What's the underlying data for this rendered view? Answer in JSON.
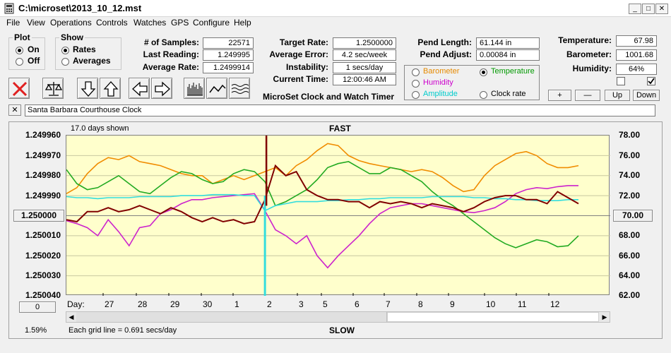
{
  "window": {
    "title": "C:\\microset\\2013_10_12.mst",
    "minimize_glyph": "_",
    "maximize_glyph": "□",
    "close_glyph": "✕"
  },
  "menu": [
    "File",
    "View",
    "Operations",
    "Controls",
    "Watches",
    "GPS",
    "Configure",
    "Help"
  ],
  "plot_group": {
    "title": "Plot",
    "options": [
      "On",
      "Off"
    ],
    "selected": "On"
  },
  "show_group": {
    "title": "Show",
    "options": [
      "Rates",
      "Averages"
    ],
    "selected": "Rates"
  },
  "stats": {
    "samples_label": "# of Samples:",
    "samples_value": "22571",
    "last_reading_label": "Last Reading:",
    "last_reading_value": "1.249995",
    "average_rate_label": "Average Rate:",
    "average_rate_value": "1.2499914",
    "target_rate_label": "Target Rate:",
    "target_rate_value": "1.2500000",
    "average_error_label": "Average Error:",
    "average_error_value": "4.2 sec/week",
    "instability_label": "Instability:",
    "instability_value": "1 secs/day",
    "current_time_label": "Current Time:",
    "current_time_value": "12:00:46 AM",
    "pend_length_label": "Pend Length:",
    "pend_length_value": "61.144 in",
    "pend_adjust_label": "Pend Adjust:",
    "pend_adjust_value": "0.00084 in",
    "temperature_label": "Temperature:",
    "temperature_value": "67.98",
    "barometer_label": "Barometer:",
    "barometer_value": "1001.68",
    "humidity_label": "Humidity:",
    "humidity_value": "64%"
  },
  "app_caption": "MicroSet Clock and Watch Timer",
  "sensor_select": {
    "options": [
      {
        "label": "Barometer",
        "color": "#e68a00"
      },
      {
        "label": "Temperature",
        "color": "#009900"
      },
      {
        "label": "Humidity",
        "color": "#cc00cc"
      },
      {
        "label": "Clock rate",
        "color": "#000000"
      },
      {
        "label": "Amplitude",
        "color": "#00cccc"
      }
    ],
    "selected": "Temperature"
  },
  "scale_buttons": {
    "plus": "+",
    "minus": "—",
    "up": "Up",
    "down": "Down"
  },
  "toolbar_icons": [
    "clear-x-icon",
    "balance-scale-icon",
    "arrow-down-icon",
    "arrow-up-icon",
    "arrow-left-icon",
    "arrow-right-icon",
    "bar-graph-icon",
    "line-wave-icon",
    "multi-wave-icon"
  ],
  "clock_name": {
    "clear_glyph": "✕",
    "value": "Santa Barbara Courthouse Clock"
  },
  "chart": {
    "days_shown": "17.0 days shown",
    "top_label": "FAST",
    "bottom_label": "SLOW",
    "grid_note": "Each grid line = 0.691 secs/day",
    "zoom_percent": "1.59%",
    "center_button": "1.250000",
    "right_button": "70.00",
    "zero_button": "0",
    "day_label": "Day:",
    "scroll_left": "◀",
    "scroll_right": "▶"
  },
  "chart_data": {
    "type": "line",
    "y_left_ticks": [
      "1.249960",
      "1.249970",
      "1.249980",
      "1.249990",
      "1.250000",
      "1.250010",
      "1.250020",
      "1.250030",
      "1.250040"
    ],
    "y_right_ticks": [
      "78.00",
      "76.00",
      "74.00",
      "72.00",
      "70.00",
      "68.00",
      "66.00",
      "64.00",
      "62.00"
    ],
    "y_left_range": [
      1.24996,
      1.25004
    ],
    "y_right_range": [
      62,
      78
    ],
    "x_ticks": [
      "27",
      "28",
      "29",
      "30",
      "1",
      "2",
      "3",
      "5",
      "6",
      "7",
      "8",
      "9",
      "10",
      "11",
      "12"
    ],
    "series": [
      {
        "name": "Barometer",
        "color": "#f08c00",
        "axis": "right",
        "values": [
          72.2,
          72.8,
          74.2,
          75.2,
          75.8,
          75.6,
          76.0,
          75.4,
          75.2,
          75.0,
          74.6,
          74.2,
          74.0,
          74.0,
          73.2,
          73.6,
          74.0,
          73.6,
          74.0,
          74.4,
          74.8,
          74.0,
          75.0,
          75.6,
          76.5,
          77.2,
          77.0,
          76.0,
          75.5,
          75.2,
          75.0,
          74.8,
          74.6,
          74.4,
          74.6,
          74.4,
          73.8,
          73.0,
          72.4,
          72.6,
          74.0,
          75.0,
          75.6,
          76.2,
          76.4,
          76.0,
          75.2,
          74.8,
          74.8,
          75.0
        ]
      },
      {
        "name": "Temperature",
        "color": "#22aa22",
        "axis": "right",
        "values": [
          74.6,
          73.2,
          72.6,
          72.8,
          73.4,
          74.0,
          73.2,
          72.4,
          72.2,
          73.0,
          73.8,
          74.4,
          74.2,
          73.6,
          73.2,
          73.4,
          74.2,
          74.6,
          74.4,
          73.4,
          71.0,
          71.4,
          72.0,
          72.6,
          73.6,
          74.8,
          75.2,
          75.4,
          74.8,
          74.2,
          74.2,
          74.8,
          74.6,
          74.0,
          73.4,
          72.4,
          71.6,
          71.0,
          70.2,
          69.4,
          68.6,
          67.8,
          67.2,
          66.8,
          67.2,
          67.6,
          67.4,
          66.9,
          67.0,
          68.0
        ]
      },
      {
        "name": "Humidity",
        "color": "#cc22cc",
        "axis": "right",
        "values": [
          69.5,
          69.2,
          68.8,
          68.0,
          69.6,
          68.4,
          67.0,
          68.8,
          69.0,
          70.2,
          70.6,
          71.2,
          71.6,
          71.6,
          71.8,
          71.9,
          72.0,
          72.1,
          72.2,
          70.5,
          68.6,
          68.0,
          67.2,
          68.0,
          66.0,
          64.8,
          66.0,
          67.0,
          68.0,
          69.2,
          70.2,
          70.8,
          71.0,
          71.2,
          71.2,
          71.0,
          70.8,
          70.6,
          70.4,
          70.3,
          70.5,
          70.8,
          71.4,
          72.2,
          72.6,
          72.8,
          72.7,
          72.9,
          73.0,
          73.0
        ]
      },
      {
        "name": "Amplitude",
        "color": "#33dddd",
        "axis": "right",
        "values": [
          71.9,
          71.8,
          71.8,
          71.7,
          71.8,
          71.8,
          71.8,
          71.9,
          71.9,
          71.9,
          71.9,
          72.0,
          72.0,
          72.0,
          72.1,
          72.1,
          72.1,
          72.0,
          72.0,
          70.5,
          71.0,
          71.2,
          71.4,
          71.4,
          71.4,
          71.5,
          71.5,
          71.6,
          71.6,
          71.7,
          71.7,
          71.8,
          71.8,
          71.8,
          71.8,
          71.9,
          71.9,
          71.9,
          71.9,
          71.8,
          71.8,
          71.7,
          71.7,
          71.6,
          71.6,
          71.5,
          71.5,
          71.5,
          71.6,
          71.6
        ]
      },
      {
        "name": "Clock rate",
        "color": "#800000",
        "axis": "left",
        "values": [
          1.250002,
          1.250003,
          1.249998,
          1.249998,
          1.249996,
          1.249998,
          1.249997,
          1.249995,
          1.249997,
          1.249999,
          1.249996,
          1.249998,
          1.250001,
          1.250003,
          1.250001,
          1.250003,
          1.250002,
          1.250004,
          1.250003,
          1.249992,
          1.249975,
          1.24998,
          1.249978,
          1.249987,
          1.24999,
          1.249992,
          1.249992,
          1.249993,
          1.249993,
          1.249996,
          1.249993,
          1.249994,
          1.249993,
          1.249994,
          1.249996,
          1.249994,
          1.249995,
          1.249996,
          1.249998,
          1.249996,
          1.249993,
          1.249991,
          1.24999,
          1.24999,
          1.249992,
          1.249992,
          1.249994,
          1.249988,
          1.249991,
          1.249994
        ]
      }
    ]
  }
}
